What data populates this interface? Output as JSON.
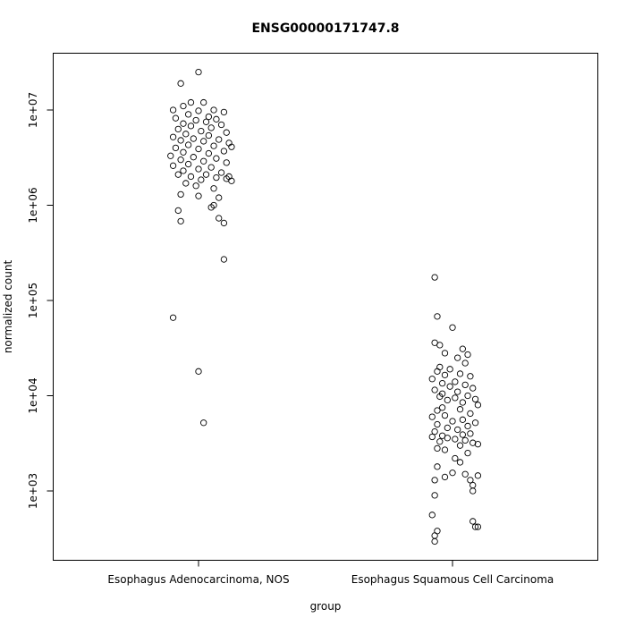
{
  "chart_data": {
    "type": "scatter",
    "title": "ENSG00000171747.8",
    "xlabel": "group",
    "ylabel": "normalized count",
    "y_scale": "log10",
    "ylim": [
      250,
      30000000
    ],
    "categories": [
      "Esophagus Adenocarcinoma, NOS",
      "Esophagus Squamous Cell Carcinoma"
    ],
    "y_ticks": [
      {
        "value": 1000,
        "label": "1e+03"
      },
      {
        "value": 10000,
        "label": "1e+04"
      },
      {
        "value": 100000,
        "label": "1e+05"
      },
      {
        "value": 1000000,
        "label": "1e+06"
      },
      {
        "value": 10000000,
        "label": "1e+07"
      }
    ],
    "grid": false,
    "marker": "open-circle",
    "series": [
      {
        "category": "Esophagus Adenocarcinoma, NOS",
        "points": [
          {
            "x": 1,
            "y": 25000000
          },
          {
            "x": 0.93,
            "y": 19000000
          },
          {
            "x": 0.97,
            "y": 12000000
          },
          {
            "x": 1.02,
            "y": 12000000
          },
          {
            "x": 0.94,
            "y": 11000000
          },
          {
            "x": 1.06,
            "y": 10000000
          },
          {
            "x": 0.9,
            "y": 10000000
          },
          {
            "x": 1,
            "y": 9800000
          },
          {
            "x": 1.1,
            "y": 9500000
          },
          {
            "x": 0.96,
            "y": 9000000
          },
          {
            "x": 1.04,
            "y": 8500000
          },
          {
            "x": 0.91,
            "y": 8200000
          },
          {
            "x": 1.07,
            "y": 8000000
          },
          {
            "x": 0.99,
            "y": 7800000
          },
          {
            "x": 1.03,
            "y": 7500000
          },
          {
            "x": 0.94,
            "y": 7200000
          },
          {
            "x": 1.09,
            "y": 7000000
          },
          {
            "x": 0.97,
            "y": 6800000
          },
          {
            "x": 1.05,
            "y": 6500000
          },
          {
            "x": 0.92,
            "y": 6300000
          },
          {
            "x": 1.01,
            "y": 6000000
          },
          {
            "x": 1.11,
            "y": 5800000
          },
          {
            "x": 0.95,
            "y": 5600000
          },
          {
            "x": 1.04,
            "y": 5400000
          },
          {
            "x": 0.9,
            "y": 5200000
          },
          {
            "x": 0.98,
            "y": 5000000
          },
          {
            "x": 1.08,
            "y": 4900000
          },
          {
            "x": 0.93,
            "y": 4800000
          },
          {
            "x": 1.02,
            "y": 4700000
          },
          {
            "x": 1.12,
            "y": 4500000
          },
          {
            "x": 0.96,
            "y": 4300000
          },
          {
            "x": 1.06,
            "y": 4200000
          },
          {
            "x": 1.13,
            "y": 4100000
          },
          {
            "x": 0.91,
            "y": 4000000
          },
          {
            "x": 1,
            "y": 3900000
          },
          {
            "x": 1.1,
            "y": 3700000
          },
          {
            "x": 0.94,
            "y": 3600000
          },
          {
            "x": 1.04,
            "y": 3500000
          },
          {
            "x": 0.89,
            "y": 3300000
          },
          {
            "x": 0.98,
            "y": 3200000
          },
          {
            "x": 1.07,
            "y": 3100000
          },
          {
            "x": 0.93,
            "y": 3000000
          },
          {
            "x": 1.02,
            "y": 2900000
          },
          {
            "x": 1.11,
            "y": 2800000
          },
          {
            "x": 0.96,
            "y": 2700000
          },
          {
            "x": 0.9,
            "y": 2600000
          },
          {
            "x": 1.05,
            "y": 2500000
          },
          {
            "x": 1,
            "y": 2400000
          },
          {
            "x": 0.94,
            "y": 2300000
          },
          {
            "x": 1.09,
            "y": 2200000
          },
          {
            "x": 0.92,
            "y": 2100000
          },
          {
            "x": 1.03,
            "y": 2100000
          },
          {
            "x": 1.12,
            "y": 2000000
          },
          {
            "x": 0.97,
            "y": 2000000
          },
          {
            "x": 1.07,
            "y": 1950000
          },
          {
            "x": 1.11,
            "y": 1900000
          },
          {
            "x": 1.01,
            "y": 1850000
          },
          {
            "x": 1.13,
            "y": 1800000
          },
          {
            "x": 0.95,
            "y": 1700000
          },
          {
            "x": 0.99,
            "y": 1600000
          },
          {
            "x": 1.06,
            "y": 1500000
          },
          {
            "x": 0.93,
            "y": 1300000
          },
          {
            "x": 1,
            "y": 1250000
          },
          {
            "x": 1.08,
            "y": 1200000
          },
          {
            "x": 1.06,
            "y": 1000000
          },
          {
            "x": 1.05,
            "y": 950000
          },
          {
            "x": 0.92,
            "y": 880000
          },
          {
            "x": 1.08,
            "y": 730000
          },
          {
            "x": 0.93,
            "y": 680000
          },
          {
            "x": 1.1,
            "y": 650000
          },
          {
            "x": 1.1,
            "y": 270000
          },
          {
            "x": 0.9,
            "y": 66000
          },
          {
            "x": 1,
            "y": 18000
          },
          {
            "x": 1.02,
            "y": 5200
          }
        ]
      },
      {
        "category": "Esophagus Squamous Cell Carcinoma",
        "points": [
          {
            "x": 1.93,
            "y": 175000
          },
          {
            "x": 1.94,
            "y": 68000
          },
          {
            "x": 2,
            "y": 52000
          },
          {
            "x": 1.93,
            "y": 36000
          },
          {
            "x": 1.95,
            "y": 34000
          },
          {
            "x": 2.04,
            "y": 31000
          },
          {
            "x": 1.97,
            "y": 28000
          },
          {
            "x": 2.06,
            "y": 27000
          },
          {
            "x": 2.02,
            "y": 25000
          },
          {
            "x": 2.05,
            "y": 22000
          },
          {
            "x": 1.95,
            "y": 20000
          },
          {
            "x": 1.99,
            "y": 19000
          },
          {
            "x": 1.94,
            "y": 18000
          },
          {
            "x": 2.03,
            "y": 17000
          },
          {
            "x": 1.97,
            "y": 16500
          },
          {
            "x": 2.07,
            "y": 16000
          },
          {
            "x": 1.92,
            "y": 15000
          },
          {
            "x": 2.01,
            "y": 14000
          },
          {
            "x": 1.96,
            "y": 13500
          },
          {
            "x": 2.05,
            "y": 13000
          },
          {
            "x": 1.99,
            "y": 12500
          },
          {
            "x": 2.08,
            "y": 12000
          },
          {
            "x": 1.93,
            "y": 11500
          },
          {
            "x": 2.02,
            "y": 11000
          },
          {
            "x": 1.96,
            "y": 10500
          },
          {
            "x": 2.06,
            "y": 10000
          },
          {
            "x": 1.95,
            "y": 9800
          },
          {
            "x": 2.01,
            "y": 9500
          },
          {
            "x": 2.09,
            "y": 9200
          },
          {
            "x": 1.98,
            "y": 9000
          },
          {
            "x": 2.04,
            "y": 8500
          },
          {
            "x": 2.1,
            "y": 8000
          },
          {
            "x": 1.96,
            "y": 7500
          },
          {
            "x": 2.03,
            "y": 7200
          },
          {
            "x": 1.94,
            "y": 7000
          },
          {
            "x": 2.07,
            "y": 6500
          },
          {
            "x": 1.97,
            "y": 6200
          },
          {
            "x": 1.92,
            "y": 6000
          },
          {
            "x": 2.04,
            "y": 5600
          },
          {
            "x": 2,
            "y": 5400
          },
          {
            "x": 2.09,
            "y": 5200
          },
          {
            "x": 1.94,
            "y": 5000
          },
          {
            "x": 2.06,
            "y": 4800
          },
          {
            "x": 1.98,
            "y": 4600
          },
          {
            "x": 2.02,
            "y": 4400
          },
          {
            "x": 1.93,
            "y": 4200
          },
          {
            "x": 2.07,
            "y": 4000
          },
          {
            "x": 2.04,
            "y": 3900
          },
          {
            "x": 1.96,
            "y": 3800
          },
          {
            "x": 1.92,
            "y": 3700
          },
          {
            "x": 1.98,
            "y": 3600
          },
          {
            "x": 2.01,
            "y": 3500
          },
          {
            "x": 2.05,
            "y": 3400
          },
          {
            "x": 1.95,
            "y": 3300
          },
          {
            "x": 2.08,
            "y": 3200
          },
          {
            "x": 2.1,
            "y": 3100
          },
          {
            "x": 2.03,
            "y": 3000
          },
          {
            "x": 1.94,
            "y": 2800
          },
          {
            "x": 1.97,
            "y": 2700
          },
          {
            "x": 2.06,
            "y": 2500
          },
          {
            "x": 2.01,
            "y": 2200
          },
          {
            "x": 2.03,
            "y": 2000
          },
          {
            "x": 1.94,
            "y": 1800
          },
          {
            "x": 2,
            "y": 1550
          },
          {
            "x": 2.05,
            "y": 1500
          },
          {
            "x": 2.1,
            "y": 1450
          },
          {
            "x": 1.97,
            "y": 1400
          },
          {
            "x": 2.07,
            "y": 1300
          },
          {
            "x": 1.93,
            "y": 1300
          },
          {
            "x": 2.08,
            "y": 1150
          },
          {
            "x": 2.08,
            "y": 1000
          },
          {
            "x": 1.93,
            "y": 900
          },
          {
            "x": 1.92,
            "y": 560
          },
          {
            "x": 2.08,
            "y": 480
          },
          {
            "x": 2.09,
            "y": 420
          },
          {
            "x": 2.1,
            "y": 420
          },
          {
            "x": 1.94,
            "y": 380
          },
          {
            "x": 1.93,
            "y": 340
          },
          {
            "x": 1.93,
            "y": 295
          }
        ]
      }
    ]
  }
}
